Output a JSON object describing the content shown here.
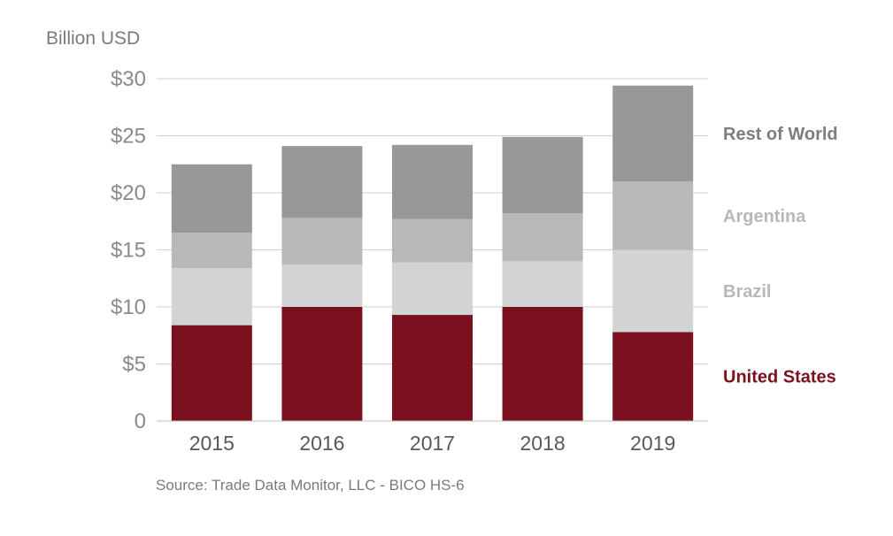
{
  "chart_data": {
    "type": "bar",
    "stacked": true,
    "title": "",
    "ylabel": "Billion USD",
    "xlabel": "",
    "source": "Source: Trade Data Monitor, LLC - BICO HS-6",
    "categories": [
      "2015",
      "2016",
      "2017",
      "2018",
      "2019"
    ],
    "ylim": [
      0,
      30
    ],
    "yticks": [
      0,
      5,
      10,
      15,
      20,
      25,
      30
    ],
    "ytick_labels": [
      "0",
      "$5",
      "$10",
      "$15",
      "$20",
      "$25",
      "$30"
    ],
    "grid": true,
    "legend": "right",
    "series": [
      {
        "name": "United States",
        "color": "#7b111f",
        "values": [
          8.4,
          10.0,
          9.3,
          10.0,
          7.8
        ]
      },
      {
        "name": "Brazil",
        "color": "#d2d3d5",
        "values": [
          5.0,
          3.7,
          4.6,
          4.0,
          7.2
        ]
      },
      {
        "name": "Argentina",
        "color": "#b7b8ba",
        "values": [
          3.1,
          4.1,
          3.8,
          4.2,
          6.0
        ]
      },
      {
        "name": "Rest of World",
        "color": "#97989a",
        "values": [
          6.0,
          6.3,
          6.5,
          6.7,
          8.4
        ]
      }
    ],
    "legend_text_colors": {
      "United States": "#7b111f",
      "Brazil": "#b7b8ba",
      "Argentina": "#b7b8ba",
      "Rest of World": "#7d7e80"
    }
  }
}
